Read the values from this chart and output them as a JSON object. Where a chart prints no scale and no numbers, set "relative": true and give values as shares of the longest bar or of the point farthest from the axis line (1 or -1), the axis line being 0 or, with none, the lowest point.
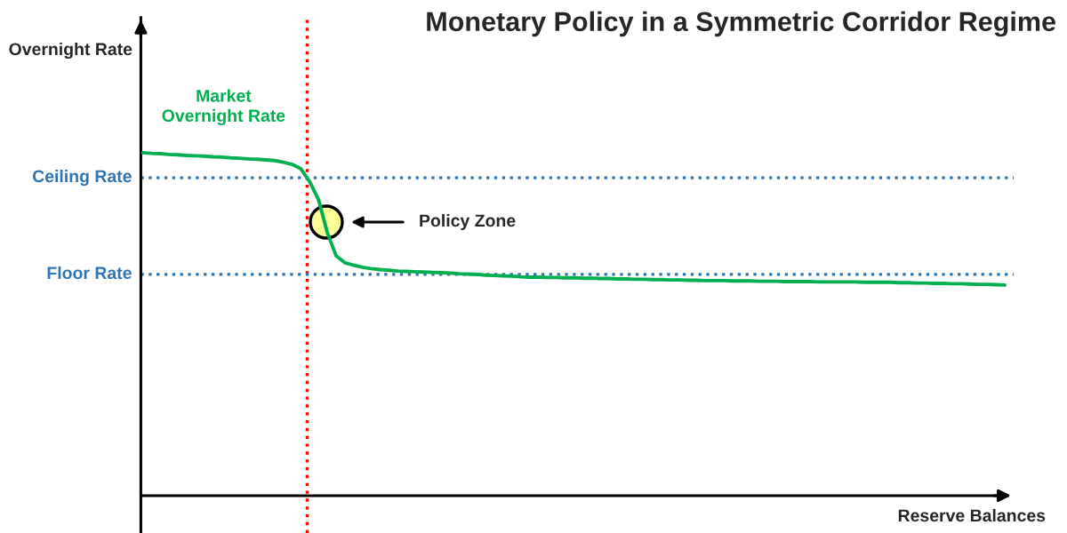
{
  "chart_data": {
    "type": "line",
    "title": "Monetary Policy in a Symmetric Corridor Regime",
    "xlabel": "Reserve Balances",
    "relative": true,
    "legend": false,
    "categories": [
      null,
      null,
      null,
      null,
      null,
      null,
      null,
      null,
      null,
      null,
      null,
      null,
      null,
      null,
      null,
      null,
      null,
      null,
      null,
      null,
      null,
      null,
      null,
      null,
      null,
      null,
      null,
      null,
      null,
      null,
      null,
      null,
      null,
      null,
      null,
      null,
      null,
      null,
      null,
      null,
      null,
      null,
      null,
      null,
      null,
      null,
      null,
      null,
      null,
      null,
      null,
      null,
      null,
      null,
      null,
      null,
      null,
      null,
      null,
      null,
      null,
      null,
      null,
      null,
      null,
      null,
      null,
      null,
      null,
      null,
      null,
      null,
      null,
      null,
      null,
      null,
      null,
      null,
      null,
      null,
      null,
      null,
      null,
      null,
      null,
      null,
      null,
      null,
      null,
      null,
      null,
      null,
      null,
      null,
      null,
      null,
      null,
      null,
      null
    ],
    "series": [
      {
        "name": "Market Overnight Rate",
        "color": "#00b050",
        "values": [
          1.0,
          0.998,
          0.997,
          0.995,
          0.994,
          0.992,
          0.991,
          0.99,
          0.988,
          0.987,
          0.985,
          0.984,
          0.982,
          0.981,
          0.979,
          0.977,
          0.972,
          0.966,
          0.953,
          0.915,
          0.863,
          0.767,
          0.699,
          0.679,
          0.672,
          0.666,
          0.662,
          0.659,
          0.657,
          0.655,
          0.654,
          0.653,
          0.652,
          0.651,
          0.65,
          0.649,
          0.647,
          0.646,
          0.645,
          0.643,
          0.642,
          0.641,
          0.64,
          0.638,
          0.637,
          0.637,
          0.636,
          0.636,
          0.635,
          0.635,
          0.634,
          0.634,
          0.633,
          0.633,
          0.632,
          0.632,
          0.631,
          0.631,
          0.63,
          0.63,
          0.629,
          0.629,
          0.628,
          0.628,
          0.627,
          0.627,
          0.627,
          0.626,
          0.626,
          0.626,
          0.625,
          0.625,
          0.625,
          0.624,
          0.624,
          0.624,
          0.624,
          0.623,
          0.623,
          0.623,
          0.623,
          0.623,
          0.622,
          0.622,
          0.622,
          0.622,
          0.621,
          0.621,
          0.62,
          0.62,
          0.619,
          0.619,
          0.618,
          0.618,
          0.617,
          0.616,
          0.616,
          0.615,
          0.614
        ]
      }
    ],
    "ref_lines": [
      {
        "axis": "y",
        "value": 0.927,
        "label": "Ceiling Rate",
        "color": "#2e75b6",
        "line_style": "dotted"
      },
      {
        "axis": "y",
        "value": 0.645,
        "label": "Floor Rate",
        "color": "#2e75b6",
        "line_style": "dotted"
      }
    ],
    "annotations": [
      "Overnight Rate",
      "Policy Zone"
    ]
  }
}
